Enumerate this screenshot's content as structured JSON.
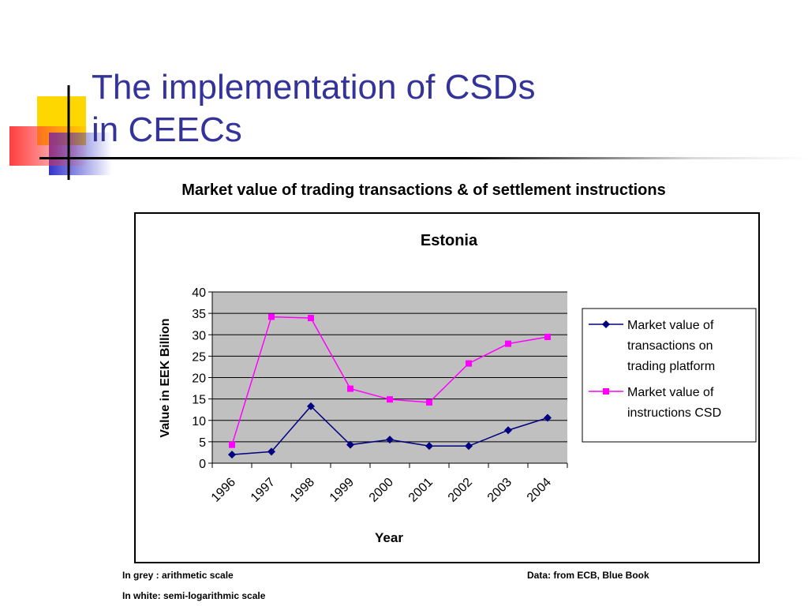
{
  "slide": {
    "title_line1": "The implementation of CSDs",
    "title_line2": "in CEECs",
    "chart_heading": "Market value of trading transactions & of settlement instructions",
    "note_scale_grey": "In grey : arithmetic scale",
    "note_scale_white": "In white: semi-logarithmic scale",
    "note_source": "Data: from ECB, Blue Book"
  },
  "colors": {
    "title": "#333399",
    "plot_bg": "#C0C0C0",
    "series_1": "#000080",
    "series_2": "#FF00FF",
    "deco_yellow": "#FFD700",
    "deco_blue": "#3333CC",
    "deco_red": "#FF3333"
  },
  "chart_data": {
    "type": "line",
    "title": "Estonia",
    "xlabel": "Year",
    "ylabel": "Value in EEK Billion",
    "categories": [
      "1996",
      "1997",
      "1998",
      "1999",
      "2000",
      "2001",
      "2002",
      "2003",
      "2004"
    ],
    "ylim": [
      0,
      40
    ],
    "yticks": [
      0,
      5,
      10,
      15,
      20,
      25,
      30,
      35,
      40
    ],
    "grid": true,
    "legend_position": "right",
    "series": [
      {
        "name": "Market value of transactions on trading platform",
        "legend_lines": [
          "Market value of",
          "transactions on",
          "trading platform"
        ],
        "marker": "diamond",
        "color": "#000080",
        "values": [
          2.0,
          2.7,
          13.3,
          4.3,
          5.5,
          4.0,
          4.0,
          7.7,
          10.6
        ]
      },
      {
        "name": "Market value of instructions CSD",
        "legend_lines": [
          "Market value of",
          "instructions CSD"
        ],
        "marker": "square",
        "color": "#FF00FF",
        "values": [
          4.3,
          34.2,
          33.9,
          17.4,
          14.9,
          14.2,
          23.3,
          27.9,
          29.5
        ]
      }
    ]
  }
}
